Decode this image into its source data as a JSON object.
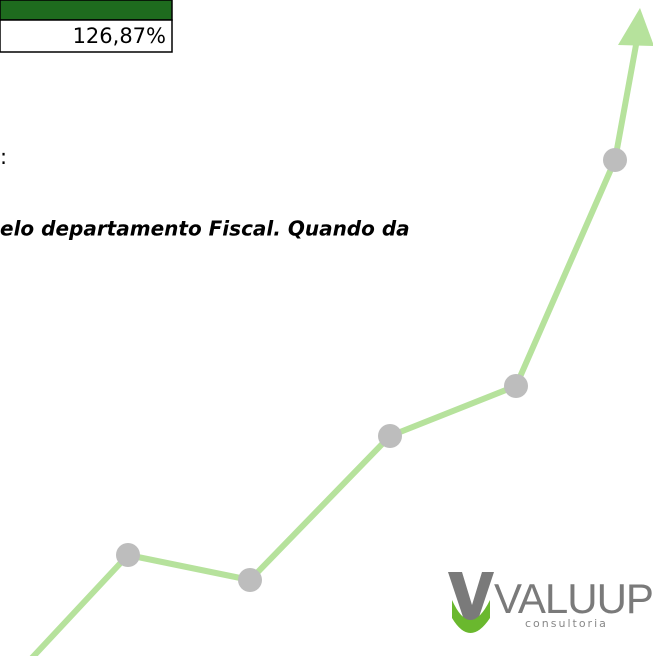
{
  "table": {
    "value": "126,87%"
  },
  "text": {
    "colon": ":",
    "line": "elo departamento Fiscal. Quando da"
  },
  "logo": {
    "name": "VALUUP",
    "tagline": "consultoria"
  }
}
